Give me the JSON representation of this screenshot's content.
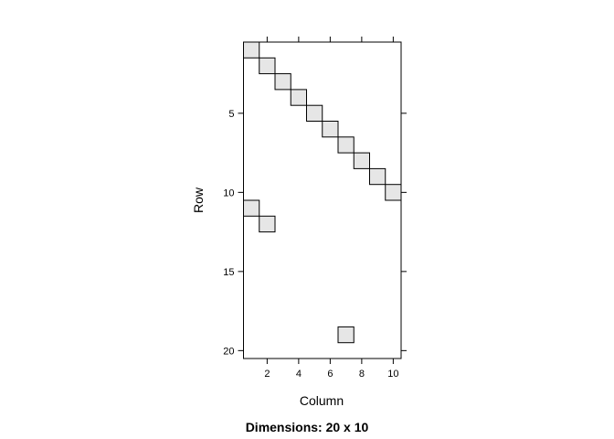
{
  "chart_data": {
    "type": "heatmap",
    "title": "Dimensions: 20 x 10",
    "xlabel": "Column",
    "ylabel": "Row",
    "nrow": 20,
    "ncol": 10,
    "xlim": [
      0.5,
      10.5
    ],
    "ylim": [
      20.5,
      0.5
    ],
    "x_ticks": [
      2,
      4,
      6,
      8,
      10
    ],
    "y_ticks": [
      5,
      10,
      15,
      20
    ],
    "grid": false,
    "fill_color": "#e6e6e6",
    "border_color": "#000000",
    "nonzero_cells": [
      {
        "row": 1,
        "col": 1
      },
      {
        "row": 2,
        "col": 2
      },
      {
        "row": 3,
        "col": 3
      },
      {
        "row": 4,
        "col": 4
      },
      {
        "row": 5,
        "col": 5
      },
      {
        "row": 6,
        "col": 6
      },
      {
        "row": 7,
        "col": 7
      },
      {
        "row": 8,
        "col": 8
      },
      {
        "row": 9,
        "col": 9
      },
      {
        "row": 10,
        "col": 10
      },
      {
        "row": 11,
        "col": 1
      },
      {
        "row": 12,
        "col": 2
      },
      {
        "row": 19,
        "col": 7
      }
    ]
  }
}
